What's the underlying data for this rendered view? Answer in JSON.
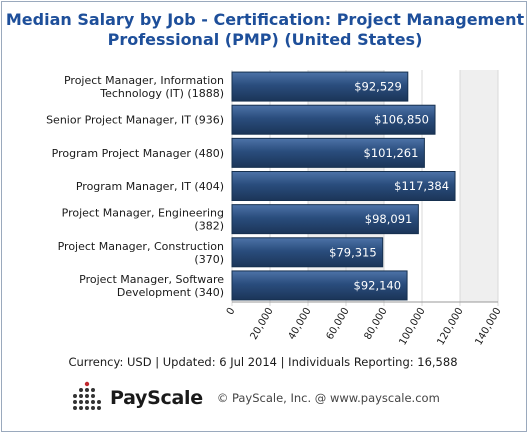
{
  "title": "Median Salary by Job - Certification: Project Management Professional (PMP) (United States)",
  "chart_data": {
    "type": "bar",
    "orientation": "horizontal",
    "categories": [
      "Project Manager, Information Technology (IT) (1888)",
      "Senior Project Manager, IT (936)",
      "Program Project Manager (480)",
      "Program Manager, IT (404)",
      "Project Manager, Engineering (382)",
      "Project Manager, Construction (370)",
      "Project Manager, Software Development (340)"
    ],
    "values": [
      92529,
      106850,
      101261,
      117384,
      98091,
      79315,
      92140
    ],
    "value_labels": [
      "$92,529",
      "$106,850",
      "$101,261",
      "$117,384",
      "$98,091",
      "$79,315",
      "$92,140"
    ],
    "xlim": [
      0,
      140000
    ],
    "x_ticks": [
      0,
      20000,
      40000,
      60000,
      80000,
      100000,
      120000,
      140000
    ],
    "x_tick_labels": [
      "0",
      "20,000",
      "40,000",
      "60,000",
      "80,000",
      "100,000",
      "120,000",
      "140,000"
    ],
    "xlabel": "",
    "ylabel": "",
    "shaded_bands": [
      [
        40000,
        80000
      ],
      [
        120000,
        140000
      ]
    ],
    "bar_color": "#2a4d7d"
  },
  "footer": {
    "info": "Currency: USD  |  Updated: 6 Jul 2014  |  Individuals Reporting: 16,588",
    "brand": "PayScale",
    "copyright": "© PayScale, Inc. @ www.payscale.com"
  }
}
